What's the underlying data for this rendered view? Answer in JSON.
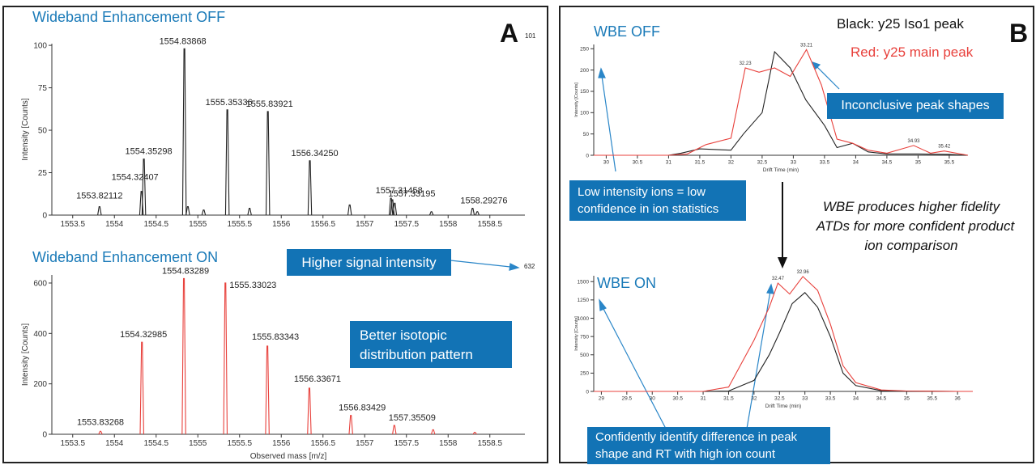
{
  "panel_a": {
    "letter": "A",
    "off": {
      "title": "Wideband Enhancement OFF",
      "max_label": "101",
      "ylabel": "Intensity [Counts]",
      "yticks": [
        "0",
        "25",
        "50",
        "75",
        "100"
      ],
      "xticks": [
        "1553.5",
        "1554",
        "1554.5",
        "1555",
        "1555.5",
        "1556",
        "1556.5",
        "1557",
        "1557.5",
        "1558",
        "1558.5"
      ]
    },
    "on": {
      "title": "Wideband Enhancement ON",
      "max_label": "632",
      "ylabel": "Intensity [Counts]",
      "yticks": [
        "0",
        "200",
        "400",
        "600"
      ],
      "xticks": [
        "1553.5",
        "1554",
        "1554.5",
        "1555",
        "1555.5",
        "1556",
        "1556.5",
        "1557",
        "1557.5",
        "1558",
        "1558.5"
      ],
      "xlabel": "Observed mass [m/z]"
    },
    "callouts": {
      "signal": "Higher signal intensity",
      "isotopic_line1": "Better isotopic",
      "isotopic_line2": "distribution pattern"
    }
  },
  "panel_b": {
    "letter": "B",
    "legend_black": "Black: y25 Iso1 peak",
    "legend_red": "Red: y25 main peak",
    "off": {
      "title": "WBE OFF",
      "ylabel": "Intensity [Counts]",
      "xlabel": "Drift Time (min)",
      "yticks": [
        "0",
        "50",
        "100",
        "150",
        "200",
        "250"
      ],
      "xticks": [
        "30",
        "30.5",
        "31",
        "31.5",
        "32",
        "32.5",
        "33",
        "33.5",
        "34",
        "34.5",
        "35",
        "35.5"
      ]
    },
    "on": {
      "title": "WBE ON",
      "ylabel": "Intensity [Counts]",
      "xlabel": "Drift Time (min)",
      "yticks": [
        "0",
        "250",
        "500",
        "750",
        "1000",
        "1250",
        "1500"
      ],
      "xticks": [
        "29",
        "29.5",
        "30",
        "30.5",
        "31",
        "31.5",
        "32",
        "32.5",
        "33",
        "33.5",
        "34",
        "34.5",
        "35",
        "35.5",
        "36"
      ]
    },
    "callouts": {
      "inconclusive": "Inconclusive peak shapes",
      "low_line1": "Low intensity ions = low",
      "low_line2": "confidence in ion statistics",
      "confident_line1": "Confidently identify difference in peak",
      "confident_line2": "shape and RT with high ion count"
    },
    "statement_line1": "WBE produces higher fidelity",
    "statement_line2": "ATDs for more confident product",
    "statement_line3": "ion comparison"
  },
  "colors": {
    "blue_title": "#1a7ab8",
    "callout_bg": "#1273b5",
    "red": "#e8413c",
    "black": "#222222"
  },
  "chart_data": [
    {
      "type": "line",
      "title": "Wideband Enhancement OFF",
      "xlabel": "",
      "ylabel": "Intensity [Counts]",
      "xlim": [
        1553.25,
        1558.92
      ],
      "ylim": [
        0,
        101
      ],
      "grid": false,
      "peaks": [
        {
          "x": 1553.82112,
          "y": 5,
          "label": "1553.82112"
        },
        {
          "x": 1554.32407,
          "y": 14,
          "label": "1554.32407"
        },
        {
          "x": 1554.35298,
          "y": 33,
          "label": "1554.35298"
        },
        {
          "x": 1554.83868,
          "y": 98,
          "label": "1554.83868"
        },
        {
          "x": 1555.35336,
          "y": 62,
          "label": "1555.35336"
        },
        {
          "x": 1555.83921,
          "y": 61,
          "label": "1555.83921"
        },
        {
          "x": 1556.3425,
          "y": 32,
          "label": "1556.34250"
        },
        {
          "x": 1557.31458,
          "y": 10,
          "label": "1557.31458"
        },
        {
          "x": 1557.33195,
          "y": 9,
          "label": "1557.33195"
        },
        {
          "x": 1558.29276,
          "y": 4,
          "label": "1558.29276"
        }
      ],
      "minor_peaks": [
        {
          "x": 1554.88,
          "y": 5
        },
        {
          "x": 1555.07,
          "y": 3
        },
        {
          "x": 1555.62,
          "y": 4
        },
        {
          "x": 1556.82,
          "y": 6
        },
        {
          "x": 1557.36,
          "y": 7
        },
        {
          "x": 1557.8,
          "y": 2
        },
        {
          "x": 1558.35,
          "y": 2
        }
      ]
    },
    {
      "type": "line",
      "title": "Wideband Enhancement ON",
      "xlabel": "Observed mass [m/z]",
      "ylabel": "Intensity [Counts]",
      "xlim": [
        1553.25,
        1558.92
      ],
      "ylim": [
        0,
        632
      ],
      "grid": false,
      "peaks": [
        {
          "x": 1553.83268,
          "y": 12,
          "label": "1553.83268"
        },
        {
          "x": 1554.32985,
          "y": 365,
          "label": "1554.32985"
        },
        {
          "x": 1554.83289,
          "y": 618,
          "label": "1554.83289"
        },
        {
          "x": 1555.33023,
          "y": 600,
          "label": "1555.33023"
        },
        {
          "x": 1555.83343,
          "y": 350,
          "label": "1555.83343"
        },
        {
          "x": 1556.33671,
          "y": 183,
          "label": "1556.33671"
        },
        {
          "x": 1556.83429,
          "y": 75,
          "label": "1556.83429"
        },
        {
          "x": 1557.35509,
          "y": 35,
          "label": "1557.35509"
        }
      ],
      "minor_peaks": [
        {
          "x": 1557.82,
          "y": 18
        },
        {
          "x": 1558.32,
          "y": 8
        }
      ]
    },
    {
      "type": "line",
      "title": "WBE OFF",
      "xlabel": "Drift Time (min)",
      "ylabel": "Intensity [Counts]",
      "xlim": [
        29.8,
        35.8
      ],
      "ylim": [
        0,
        260
      ],
      "grid": false,
      "series": [
        {
          "name": "Black: y25 Iso1 peak",
          "color": "#222222",
          "x": [
            29.8,
            30,
            30.5,
            31,
            31.2,
            31.5,
            32,
            32.2,
            32.5,
            32.7,
            32.95,
            33.2,
            33.5,
            33.7,
            33.95,
            34.2,
            34.5,
            35,
            35.5,
            35.8
          ],
          "y": [
            0,
            0,
            0,
            0,
            5,
            15,
            12,
            50,
            100,
            243,
            205,
            130,
            70,
            18,
            28,
            8,
            3,
            3,
            2,
            0
          ]
        },
        {
          "name": "Red: y25 main peak",
          "color": "#e8413c",
          "x": [
            29.8,
            30,
            30.5,
            31,
            31.3,
            31.6,
            32,
            32.23,
            32.45,
            32.7,
            32.95,
            33.21,
            33.45,
            33.7,
            33.95,
            34.2,
            34.5,
            34.93,
            35.2,
            35.42,
            35.8
          ],
          "y": [
            0,
            0,
            0,
            0,
            3,
            25,
            40,
            205,
            195,
            205,
            185,
            248,
            165,
            38,
            28,
            12,
            5,
            23,
            5,
            10,
            0
          ]
        }
      ],
      "annotations": [
        {
          "x": 32.23,
          "y": 205,
          "text": "32.23"
        },
        {
          "x": 33.21,
          "y": 248,
          "text": "33.21"
        },
        {
          "x": 34.93,
          "y": 23,
          "text": "34.93"
        },
        {
          "x": 35.42,
          "y": 10,
          "text": "35.42"
        }
      ]
    },
    {
      "type": "line",
      "title": "WBE ON",
      "xlabel": "Drift Time (min)",
      "ylabel": "Intensity [Counts]",
      "xlim": [
        28.85,
        36.3
      ],
      "ylim": [
        0,
        1580
      ],
      "grid": false,
      "series": [
        {
          "name": "Black: y25 Iso1 peak",
          "color": "#222222",
          "x": [
            28.85,
            29,
            30,
            31,
            31.5,
            32,
            32.3,
            32.5,
            32.75,
            33,
            33.25,
            33.5,
            33.75,
            34,
            34.5,
            35,
            36,
            36.3
          ],
          "y": [
            0,
            0,
            0,
            0,
            5,
            150,
            500,
            800,
            1200,
            1350,
            1150,
            750,
            250,
            80,
            10,
            5,
            0,
            0
          ]
        },
        {
          "name": "Red: y25 main peak",
          "color": "#e8413c",
          "x": [
            28.85,
            29,
            30,
            31,
            31.5,
            32,
            32.3,
            32.47,
            32.7,
            32.96,
            33.25,
            33.5,
            33.75,
            34,
            34.5,
            35,
            36,
            36.3
          ],
          "y": [
            0,
            0,
            0,
            0,
            60,
            700,
            1150,
            1480,
            1330,
            1570,
            1380,
            920,
            350,
            120,
            20,
            5,
            0,
            0
          ]
        }
      ],
      "annotations": [
        {
          "x": 32.47,
          "y": 1480,
          "text": "32.47"
        },
        {
          "x": 32.96,
          "y": 1570,
          "text": "32.96"
        }
      ]
    }
  ]
}
